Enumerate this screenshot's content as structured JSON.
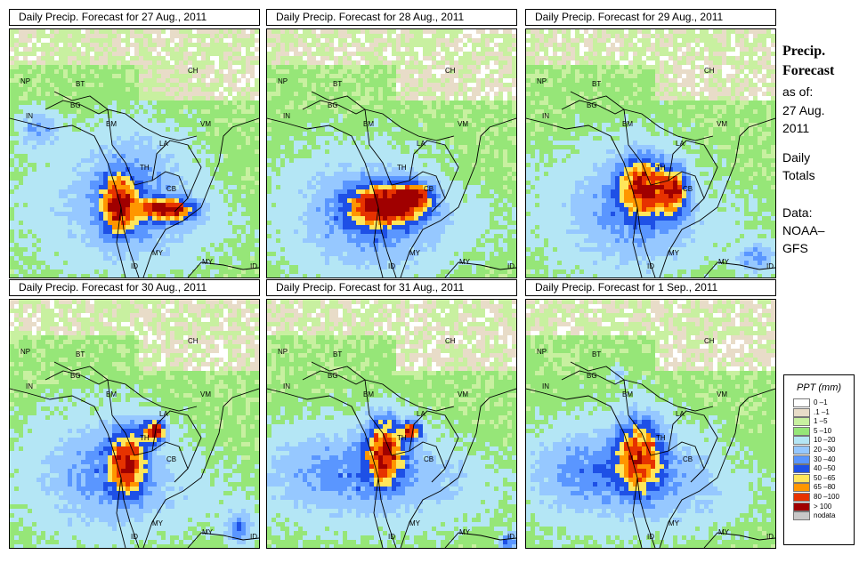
{
  "panels": [
    {
      "title": "Daily Precip. Forecast for  27 Aug., 2011"
    },
    {
      "title": "Daily Precip. Forecast for  28 Aug., 2011"
    },
    {
      "title": "Daily Precip. Forecast for  29 Aug., 2011"
    },
    {
      "title": "Daily Precip. Forecast for  30 Aug., 2011"
    },
    {
      "title": "Daily Precip. Forecast for  31 Aug., 2011"
    },
    {
      "title": "Daily Precip. Forecast for  1 Sep., 2011"
    }
  ],
  "map_labels": [
    "NP",
    "BT",
    "BG",
    "IN",
    "CH",
    "BM",
    "VM",
    "LA",
    "TH",
    "CB",
    "MY",
    "ID",
    "MY",
    "ID"
  ],
  "side": {
    "title_line1": "Precip.",
    "title_line2": "Forecast",
    "asof": "as of:",
    "date_line1": "27 Aug.",
    "date_line2": "2011",
    "totals_line1": "Daily",
    "totals_line2": "Totals",
    "data_line1": "Data:",
    "data_line2": "NOAA–",
    "data_line3": "GFS"
  },
  "legend": {
    "title": "PPT (mm)",
    "items": [
      {
        "label": "0 –1",
        "color": "#ffffff"
      },
      {
        "label": ".1 –1",
        "color": "#e8dcc8"
      },
      {
        "label": "1 –5",
        "color": "#c8f0a0"
      },
      {
        "label": "5 –10",
        "color": "#96e678"
      },
      {
        "label": "10 –20",
        "color": "#b4e6f5"
      },
      {
        "label": "20 –30",
        "color": "#96c8ff"
      },
      {
        "label": "30 –40",
        "color": "#5a96ff"
      },
      {
        "label": "40 –50",
        "color": "#1e50e6"
      },
      {
        "label": "50 –65",
        "color": "#ffe65a"
      },
      {
        "label": "65 –80",
        "color": "#ff9600"
      },
      {
        "label": "80 –100",
        "color": "#e63200"
      },
      {
        "label": "> 100",
        "color": "#a00000"
      },
      {
        "label": "nodata",
        "color": "#c8c8c8"
      }
    ]
  }
}
